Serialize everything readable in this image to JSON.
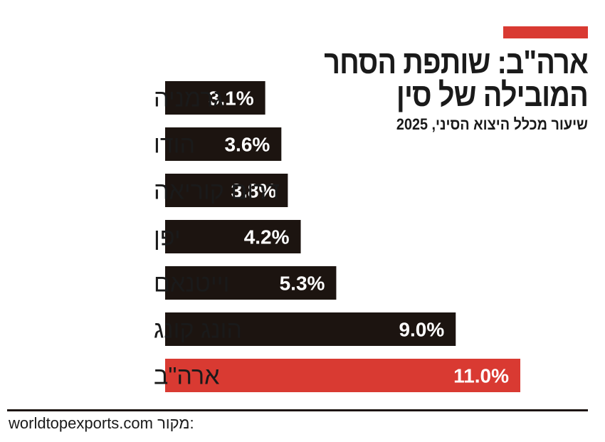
{
  "header": {
    "title_line1": "ארה\"ב: שותפת הסחר",
    "title_line2": "המובילה של סין",
    "subtitle": "שיעור מכלל היצוא הסיני, 2025"
  },
  "source": {
    "label": "מקור:",
    "value": "worldtopexports.com"
  },
  "colors": {
    "bar": "#1c1410",
    "highlight": "#d93a32",
    "text": "#1a1a1a",
    "value_label": "#ffffff"
  },
  "chart_data": {
    "type": "bar",
    "orientation": "horizontal",
    "title": "ארה\"ב: שותפת הסחר המובילה של סין",
    "subtitle": "שיעור מכלל היצוא הסיני, 2025",
    "categories": [
      "גרמניה",
      "הודו",
      "דרום קוריאה",
      "יפן",
      "וייטנאם",
      "הונג קונג",
      "ארה\"ב"
    ],
    "values": [
      3.1,
      3.6,
      3.8,
      4.2,
      5.3,
      9.0,
      11.0
    ],
    "value_labels": [
      "3.1%",
      "3.6%",
      "3.8%",
      "4.2%",
      "5.3%",
      "9.0%",
      "11.0%"
    ],
    "highlight_index": 6,
    "unit": "%",
    "xlim": [
      0,
      11.0
    ],
    "grid": false,
    "legend": "none"
  }
}
